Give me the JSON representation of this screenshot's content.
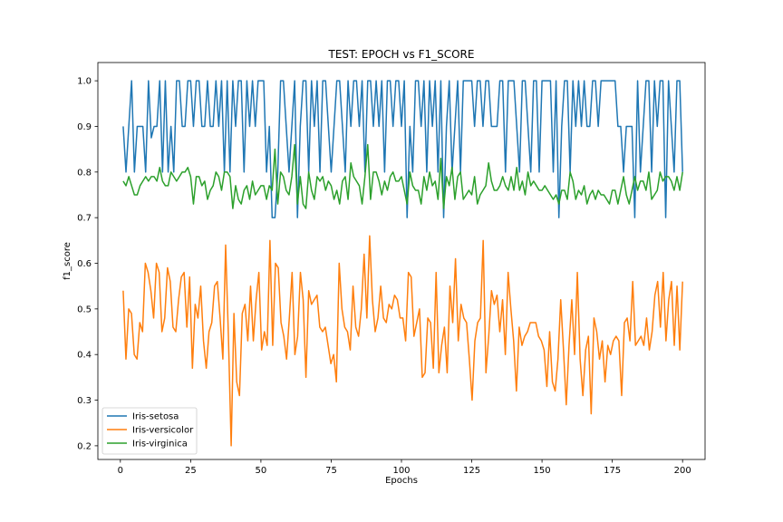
{
  "chart_data": {
    "type": "line",
    "title": "TEST: EPOCH vs F1_SCORE",
    "xlabel": "Epochs",
    "ylabel": "f1_score",
    "xlim": [
      -8,
      208
    ],
    "ylim": [
      0.17,
      1.04
    ],
    "xticks": [
      0,
      25,
      50,
      75,
      100,
      125,
      150,
      175,
      200
    ],
    "yticks": [
      0.2,
      0.3,
      0.4,
      0.5,
      0.6,
      0.7,
      0.8,
      0.9,
      1.0
    ],
    "ytick_labels": [
      "0.2",
      "0.3",
      "0.4",
      "0.5",
      "0.6",
      "0.7",
      "0.8",
      "0.9",
      "1.0"
    ],
    "grid": false,
    "legend": "lower-left",
    "x_start": 1,
    "x_end": 200,
    "series": [
      {
        "name": "Iris-setosa",
        "color": "#1f77b4",
        "values": [
          0.9,
          0.8,
          0.9,
          1.0,
          0.8,
          0.9,
          0.9,
          0.9,
          0.8,
          1.0,
          0.875,
          0.9,
          0.9,
          1.0,
          0.8,
          1.0,
          0.8,
          0.9,
          0.8,
          1.0,
          1.0,
          0.9,
          0.9,
          1.0,
          1.0,
          0.9,
          1.0,
          1.0,
          0.9,
          0.9,
          1.0,
          0.9,
          0.9,
          1.0,
          0.9,
          1.0,
          0.8,
          1.0,
          0.8,
          1.0,
          0.9,
          1.0,
          1.0,
          0.8,
          1.0,
          0.9,
          1.0,
          0.9,
          1.0,
          1.0,
          1.0,
          0.8,
          0.9,
          0.7,
          0.7,
          0.8,
          1.0,
          1.0,
          0.9,
          0.8,
          0.9,
          1.0,
          0.7,
          0.9,
          1.0,
          1.0,
          0.8,
          1.0,
          0.9,
          1.0,
          0.8,
          1.0,
          1.0,
          0.9,
          0.8,
          0.9,
          1.0,
          1.0,
          0.9,
          0.8,
          1.0,
          0.9,
          1.0,
          1.0,
          0.9,
          1.0,
          0.8,
          1.0,
          1.0,
          0.9,
          1.0,
          0.9,
          1.0,
          0.8,
          1.0,
          1.0,
          0.9,
          1.0,
          1.0,
          0.9,
          1.0,
          0.7,
          0.9,
          0.8,
          1.0,
          1.0,
          0.9,
          1.0,
          0.8,
          1.0,
          0.9,
          1.0,
          0.8,
          1.0,
          0.7,
          0.9,
          1.0,
          0.8,
          0.9,
          1.0,
          0.8,
          1.0,
          1.0,
          1.0,
          1.0,
          0.9,
          1.0,
          1.0,
          0.9,
          1.0,
          1.0,
          0.9,
          0.9,
          0.9,
          1.0,
          1.0,
          0.8,
          1.0,
          1.0,
          1.0,
          0.9,
          0.8,
          1.0,
          1.0,
          0.9,
          0.8,
          1.0,
          1.0,
          0.8,
          1.0,
          1.0,
          1.0,
          1.0,
          0.8,
          1.0,
          0.7,
          0.9,
          1.0,
          1.0,
          0.8,
          1.0,
          0.9,
          1.0,
          0.9,
          1.0,
          0.9,
          0.9,
          1.0,
          1.0,
          0.9,
          1.0,
          1.0,
          1.0,
          1.0,
          1.0,
          1.0,
          0.9,
          0.9,
          0.8,
          0.9,
          0.9,
          0.9,
          0.7,
          1.0,
          0.8,
          0.9,
          1.0,
          1.0,
          0.8,
          1.0,
          0.9,
          1.0,
          1.0,
          0.7,
          1.0,
          0.9,
          0.8,
          1.0,
          1.0,
          0.8
        ]
      },
      {
        "name": "Iris-versicolor",
        "color": "#ff7f0e",
        "values": [
          0.54,
          0.39,
          0.5,
          0.49,
          0.4,
          0.39,
          0.47,
          0.45,
          0.6,
          0.58,
          0.54,
          0.48,
          0.6,
          0.58,
          0.45,
          0.48,
          0.59,
          0.56,
          0.46,
          0.45,
          0.52,
          0.57,
          0.58,
          0.46,
          0.57,
          0.37,
          0.51,
          0.48,
          0.55,
          0.43,
          0.37,
          0.45,
          0.47,
          0.55,
          0.56,
          0.48,
          0.39,
          0.64,
          0.44,
          0.2,
          0.49,
          0.34,
          0.31,
          0.49,
          0.51,
          0.43,
          0.55,
          0.43,
          0.52,
          0.58,
          0.41,
          0.45,
          0.42,
          0.65,
          0.42,
          0.6,
          0.59,
          0.47,
          0.44,
          0.39,
          0.48,
          0.58,
          0.4,
          0.44,
          0.58,
          0.52,
          0.35,
          0.54,
          0.51,
          0.52,
          0.53,
          0.46,
          0.45,
          0.46,
          0.42,
          0.38,
          0.4,
          0.34,
          0.6,
          0.5,
          0.46,
          0.45,
          0.41,
          0.55,
          0.46,
          0.44,
          0.5,
          0.62,
          0.48,
          0.66,
          0.52,
          0.45,
          0.48,
          0.55,
          0.48,
          0.47,
          0.51,
          0.5,
          0.53,
          0.52,
          0.48,
          0.48,
          0.43,
          0.58,
          0.57,
          0.44,
          0.47,
          0.5,
          0.35,
          0.36,
          0.48,
          0.47,
          0.37,
          0.58,
          0.36,
          0.42,
          0.46,
          0.36,
          0.55,
          0.47,
          0.61,
          0.43,
          0.51,
          0.48,
          0.47,
          0.39,
          0.3,
          0.43,
          0.47,
          0.48,
          0.65,
          0.36,
          0.44,
          0.54,
          0.51,
          0.53,
          0.45,
          0.52,
          0.4,
          0.58,
          0.5,
          0.43,
          0.32,
          0.46,
          0.42,
          0.44,
          0.45,
          0.47,
          0.47,
          0.47,
          0.44,
          0.43,
          0.41,
          0.33,
          0.45,
          0.34,
          0.32,
          0.39,
          0.52,
          0.41,
          0.29,
          0.42,
          0.52,
          0.4,
          0.58,
          0.39,
          0.31,
          0.41,
          0.44,
          0.27,
          0.48,
          0.45,
          0.39,
          0.43,
          0.34,
          0.42,
          0.4,
          0.43,
          0.44,
          0.43,
          0.31,
          0.47,
          0.48,
          0.43,
          0.56,
          0.42,
          0.43,
          0.44,
          0.42,
          0.48,
          0.41,
          0.45,
          0.53,
          0.56,
          0.46,
          0.58,
          0.43,
          0.52,
          0.56,
          0.42,
          0.55,
          0.41,
          0.56
        ]
      },
      {
        "name": "Iris-virginica",
        "color": "#2ca02c",
        "values": [
          0.78,
          0.77,
          0.79,
          0.77,
          0.75,
          0.75,
          0.77,
          0.78,
          0.79,
          0.78,
          0.79,
          0.79,
          0.78,
          0.81,
          0.78,
          0.77,
          0.77,
          0.8,
          0.79,
          0.78,
          0.79,
          0.8,
          0.8,
          0.81,
          0.79,
          0.73,
          0.79,
          0.79,
          0.77,
          0.78,
          0.74,
          0.76,
          0.77,
          0.8,
          0.79,
          0.76,
          0.8,
          0.8,
          0.79,
          0.72,
          0.77,
          0.74,
          0.73,
          0.76,
          0.77,
          0.74,
          0.78,
          0.75,
          0.76,
          0.77,
          0.77,
          0.74,
          0.77,
          0.76,
          0.85,
          0.73,
          0.8,
          0.79,
          0.76,
          0.75,
          0.79,
          0.86,
          0.73,
          0.79,
          0.73,
          0.72,
          0.8,
          0.76,
          0.74,
          0.79,
          0.78,
          0.79,
          0.76,
          0.78,
          0.77,
          0.74,
          0.76,
          0.73,
          0.78,
          0.79,
          0.74,
          0.82,
          0.79,
          0.78,
          0.77,
          0.73,
          0.79,
          0.86,
          0.74,
          0.8,
          0.8,
          0.78,
          0.75,
          0.78,
          0.76,
          0.79,
          0.8,
          0.78,
          0.78,
          0.79,
          0.76,
          0.73,
          0.8,
          0.77,
          0.76,
          0.76,
          0.73,
          0.79,
          0.76,
          0.8,
          0.77,
          0.78,
          0.74,
          0.83,
          0.72,
          0.79,
          0.77,
          0.81,
          0.74,
          0.79,
          0.8,
          0.74,
          0.75,
          0.76,
          0.75,
          0.79,
          0.73,
          0.75,
          0.76,
          0.77,
          0.82,
          0.78,
          0.76,
          0.76,
          0.77,
          0.79,
          0.77,
          0.76,
          0.79,
          0.76,
          0.81,
          0.76,
          0.78,
          0.75,
          0.8,
          0.77,
          0.78,
          0.77,
          0.76,
          0.76,
          0.77,
          0.76,
          0.75,
          0.74,
          0.75,
          0.73,
          0.76,
          0.76,
          0.74,
          0.8,
          0.78,
          0.74,
          0.76,
          0.75,
          0.77,
          0.73,
          0.75,
          0.76,
          0.74,
          0.76,
          0.75,
          0.75,
          0.74,
          0.73,
          0.76,
          0.76,
          0.73,
          0.76,
          0.79,
          0.75,
          0.73,
          0.76,
          0.79,
          0.76,
          0.78,
          0.78,
          0.76,
          0.8,
          0.74,
          0.75,
          0.76,
          0.8,
          0.78,
          0.79,
          0.79,
          0.78,
          0.76,
          0.79,
          0.76,
          0.8
        ]
      }
    ]
  }
}
